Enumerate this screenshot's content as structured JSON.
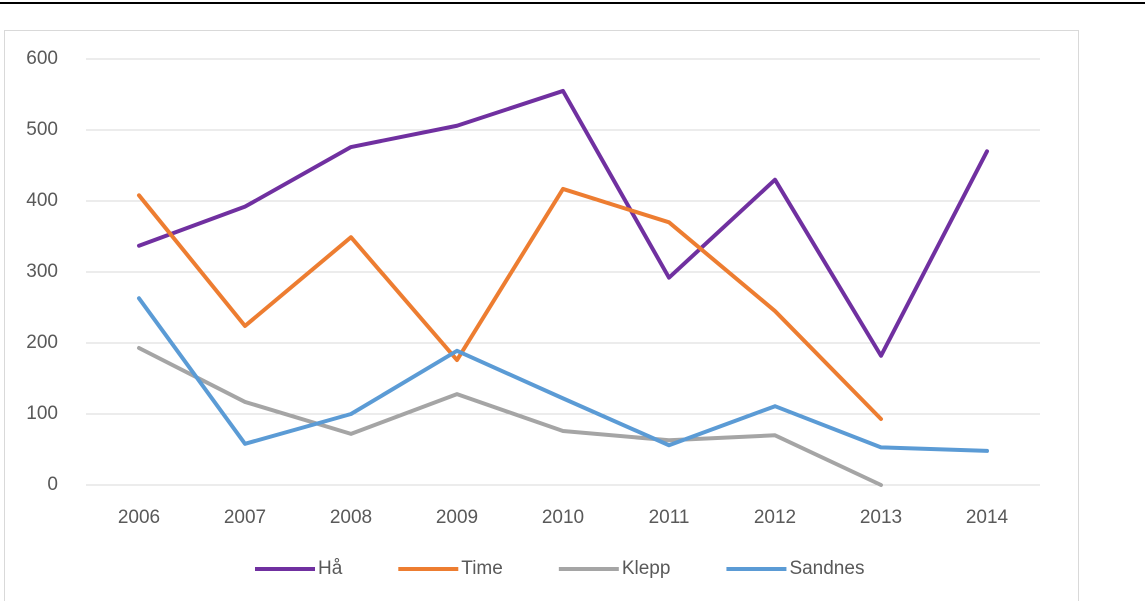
{
  "chart_data": {
    "type": "line",
    "categories": [
      "2006",
      "2007",
      "2008",
      "2009",
      "2010",
      "2011",
      "2012",
      "2013",
      "2014"
    ],
    "series": [
      {
        "name": "Hå",
        "color": "#7030a0",
        "values": [
          337,
          392,
          476,
          506,
          555,
          292,
          430,
          182,
          470
        ]
      },
      {
        "name": "Time",
        "color": "#ed7d31",
        "values": [
          408,
          224,
          349,
          176,
          417,
          370,
          245,
          93,
          null
        ]
      },
      {
        "name": "Klepp",
        "color": "#a5a5a5",
        "values": [
          193,
          117,
          72,
          128,
          76,
          63,
          70,
          0,
          null
        ]
      },
      {
        "name": "Sandnes",
        "color": "#5b9bd5",
        "values": [
          263,
          58,
          100,
          189,
          122,
          56,
          111,
          53,
          48
        ]
      }
    ],
    "ylim": [
      0,
      600
    ],
    "yticks": [
      0,
      100,
      200,
      300,
      400,
      500,
      600
    ],
    "grid": true,
    "legend": "bottom"
  }
}
